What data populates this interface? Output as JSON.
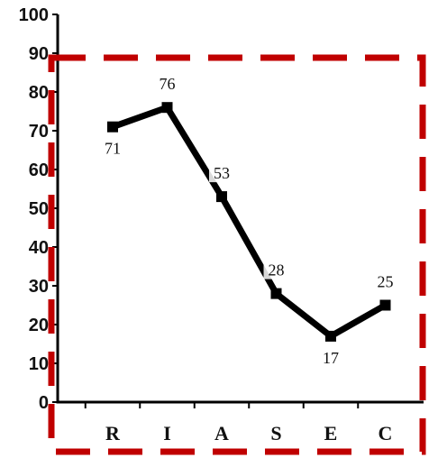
{
  "chart_data": {
    "type": "line",
    "categories": [
      "R",
      "I",
      "A",
      "S",
      "E",
      "C"
    ],
    "values": [
      71,
      76,
      53,
      28,
      17,
      25
    ],
    "data_labels": [
      "71",
      "76",
      "53",
      "28",
      "17",
      "25"
    ],
    "y_ticks": [
      "0",
      "10",
      "20",
      "30",
      "40",
      "50",
      "60",
      "70",
      "80",
      "90",
      "100"
    ],
    "ylim": [
      0,
      100
    ],
    "grid": false,
    "line_color": "#000000",
    "highlight_box_color": "#c00000"
  }
}
